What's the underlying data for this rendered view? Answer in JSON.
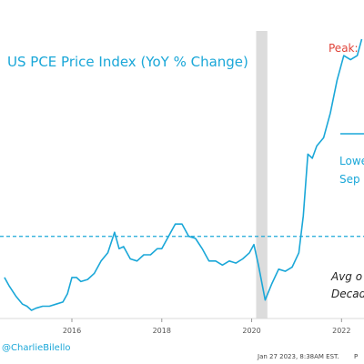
{
  "chart_data": {
    "type": "line",
    "title": "US PCE Price Index (YoY % Change)",
    "x_ticks": [
      "2016",
      "2018",
      "2020",
      "2022"
    ],
    "series": [
      {
        "x": [
          2014.5,
          2014.6,
          2014.75,
          2014.9,
          2015.0,
          2015.1,
          2015.2,
          2015.35,
          2015.5,
          2015.65,
          2015.8,
          2015.9,
          2016.0,
          2016.1,
          2016.2,
          2016.35,
          2016.5,
          2016.65,
          2016.8,
          2016.95,
          2017.05,
          2017.15,
          2017.3,
          2017.45,
          2017.6,
          2017.75,
          2017.9,
          2018.0,
          2018.15,
          2018.3,
          2018.45,
          2018.6,
          2018.75,
          2018.9,
          2019.05,
          2019.2,
          2019.35,
          2019.5,
          2019.65,
          2019.8,
          2019.95,
          2020.05,
          2020.15,
          2020.3,
          2020.45,
          2020.6,
          2020.75,
          2020.9,
          2021.05,
          2021.15,
          2021.25,
          2021.35,
          2021.45,
          2021.6,
          2021.75,
          2021.9,
          2022.05,
          2022.2,
          2022.35,
          2022.45
        ],
        "y": [
          1.0,
          0.8,
          0.55,
          0.35,
          0.3,
          0.2,
          0.25,
          0.3,
          0.3,
          0.35,
          0.4,
          0.6,
          1.0,
          1.0,
          0.9,
          0.95,
          1.1,
          1.4,
          1.6,
          2.1,
          1.7,
          1.75,
          1.45,
          1.4,
          1.55,
          1.55,
          1.7,
          1.7,
          2.0,
          2.3,
          2.3,
          2.0,
          1.95,
          1.7,
          1.4,
          1.4,
          1.3,
          1.4,
          1.35,
          1.45,
          1.6,
          1.8,
          1.3,
          0.45,
          0.85,
          1.2,
          1.15,
          1.25,
          1.6,
          2.5,
          4.0,
          3.9,
          4.2,
          4.4,
          5.0,
          5.8,
          6.4,
          6.3,
          6.4,
          6.8
        ]
      }
    ],
    "reference_line": {
      "y": 2.0,
      "style": "dashed"
    },
    "shaded_region": {
      "x_start": 2020.1,
      "x_end": 2020.35
    },
    "y_range": [
      0.0,
      7.0
    ],
    "x_range": [
      2014.4,
      2022.5
    ],
    "annotations": [
      {
        "text": "Peak: ",
        "color": "#e0443a"
      },
      {
        "text": "Lowe",
        "color": "#1aa7d8"
      },
      {
        "text": "Sep '",
        "color": "#1aa7d8"
      },
      {
        "text": "Avg o",
        "color": "#222222"
      },
      {
        "text": "Decad",
        "color": "#222222"
      }
    ],
    "colors": {
      "line": "#1aa7d8",
      "peak_text": "#e0443a",
      "recession": "#dcdcdc"
    }
  },
  "footer": {
    "handle": "@CharlieBilello",
    "timestamp": "Jan 27 2023, 8:38AM EST.",
    "timestamp_tail": "P"
  }
}
